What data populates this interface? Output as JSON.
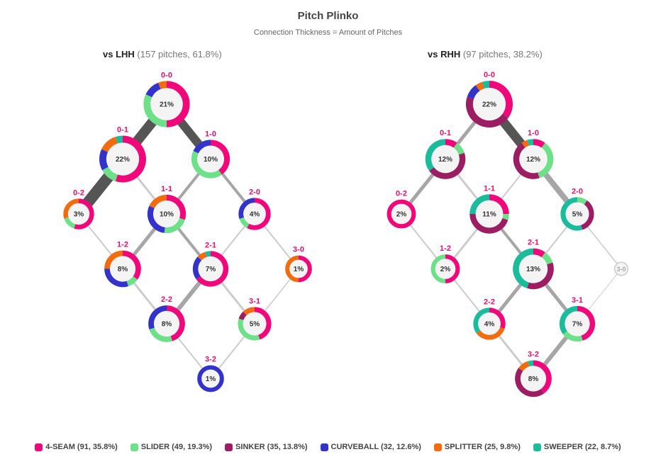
{
  "title": "Pitch Plinko",
  "subtitle": "Connection Thickness = Amount of Pitches",
  "chart_data": {
    "type": "plinko",
    "pitch_types": [
      {
        "key": "4seam",
        "label": "4-SEAM (91, 35.8%)",
        "color": "#f0087a"
      },
      {
        "key": "slider",
        "label": "SLIDER (49, 19.3%)",
        "color": "#6ee08a"
      },
      {
        "key": "sinker",
        "label": "SINKER (35, 13.8%)",
        "color": "#9b1d62"
      },
      {
        "key": "curveball",
        "label": "CURVEBALL (32, 12.6%)",
        "color": "#3333cc"
      },
      {
        "key": "splitter",
        "label": "SPLITTER (25, 9.8%)",
        "color": "#f26b0f"
      },
      {
        "key": "sweeper",
        "label": "SWEEPER (22, 8.7%)",
        "color": "#1bbc9b"
      }
    ],
    "panels": [
      {
        "side_label": "vs LHH",
        "side_detail": "(157 pitches, 61.8%)",
        "nodes": [
          {
            "count": "0-0",
            "pct": 21,
            "pct_label": "21%",
            "mix": {
              "4seam": 0.5,
              "slider": 0.32,
              "curveball": 0.12,
              "splitter": 0.06
            }
          },
          {
            "count": "0-1",
            "pct": 22,
            "pct_label": "22%",
            "mix": {
              "4seam": 0.55,
              "curveball": 0.15,
              "slider": 0.12,
              "splitter": 0.13,
              "sweeper": 0.05
            }
          },
          {
            "count": "1-0",
            "pct": 10,
            "pct_label": "10%",
            "mix": {
              "slider": 0.42,
              "4seam": 0.4,
              "curveball": 0.18
            }
          },
          {
            "count": "0-2",
            "pct": 3,
            "pct_label": "3%",
            "mix": {
              "4seam": 0.55,
              "splitter": 0.3,
              "slider": 0.15
            }
          },
          {
            "count": "1-1",
            "pct": 10,
            "pct_label": "10%",
            "mix": {
              "4seam": 0.3,
              "curveball": 0.3,
              "slider": 0.22,
              "splitter": 0.18
            }
          },
          {
            "count": "2-0",
            "pct": 4,
            "pct_label": "4%",
            "mix": {
              "4seam": 0.58,
              "curveball": 0.3,
              "slider": 0.12
            }
          },
          {
            "count": "1-2",
            "pct": 8,
            "pct_label": "8%",
            "mix": {
              "4seam": 0.35,
              "curveball": 0.3,
              "splitter": 0.25,
              "slider": 0.1
            }
          },
          {
            "count": "2-1",
            "pct": 7,
            "pct_label": "7%",
            "mix": {
              "4seam": 0.65,
              "curveball": 0.22,
              "splitter": 0.08,
              "sweeper": 0.05
            }
          },
          {
            "count": "3-0",
            "pct": 1,
            "pct_label": "1%",
            "mix": {
              "4seam": 0.5,
              "splitter": 0.5
            }
          },
          {
            "count": "2-2",
            "pct": 8,
            "pct_label": "8%",
            "mix": {
              "4seam": 0.45,
              "curveball": 0.3,
              "slider": 0.25
            }
          },
          {
            "count": "3-1",
            "pct": 5,
            "pct_label": "5%",
            "mix": {
              "4seam": 0.45,
              "slider": 0.35,
              "splitter": 0.12,
              "sinker": 0.08
            }
          },
          {
            "count": "3-2",
            "pct": 1,
            "pct_label": "1%",
            "mix": {
              "curveball": 1.0
            }
          }
        ],
        "links": [
          {
            "from": "0-0",
            "to": "0-1",
            "weight": 14
          },
          {
            "from": "0-0",
            "to": "1-0",
            "weight": 12
          },
          {
            "from": "0-1",
            "to": "0-2",
            "weight": 16
          },
          {
            "from": "0-1",
            "to": "1-1",
            "weight": 3
          },
          {
            "from": "1-0",
            "to": "1-1",
            "weight": 4
          },
          {
            "from": "1-0",
            "to": "2-0",
            "weight": 4
          },
          {
            "from": "0-2",
            "to": "1-2",
            "weight": 2
          },
          {
            "from": "1-1",
            "to": "1-2",
            "weight": 5
          },
          {
            "from": "1-1",
            "to": "2-1",
            "weight": 4
          },
          {
            "from": "2-0",
            "to": "2-1",
            "weight": 2
          },
          {
            "from": "2-0",
            "to": "3-0",
            "weight": 2
          },
          {
            "from": "1-2",
            "to": "2-2",
            "weight": 3
          },
          {
            "from": "2-1",
            "to": "2-2",
            "weight": 6
          },
          {
            "from": "2-1",
            "to": "3-1",
            "weight": 3
          },
          {
            "from": "3-0",
            "to": "3-1",
            "weight": 1.5
          },
          {
            "from": "2-2",
            "to": "3-2",
            "weight": 2
          },
          {
            "from": "3-1",
            "to": "3-2",
            "weight": 2
          }
        ]
      },
      {
        "side_label": "vs RHH",
        "side_detail": "(97 pitches, 38.2%)",
        "nodes": [
          {
            "count": "0-0",
            "pct": 22,
            "pct_label": "22%",
            "mix": {
              "sinker": 0.45,
              "4seam": 0.35,
              "curveball": 0.1,
              "sweeper": 0.05,
              "splitter": 0.05
            }
          },
          {
            "count": "0-1",
            "pct": 12,
            "pct_label": "12%",
            "mix": {
              "sweeper": 0.35,
              "sinker": 0.45,
              "4seam": 0.1,
              "slider": 0.1
            }
          },
          {
            "count": "1-0",
            "pct": 12,
            "pct_label": "12%",
            "mix": {
              "sinker": 0.45,
              "slider": 0.35,
              "4seam": 0.1,
              "splitter": 0.05,
              "sweeper": 0.05
            }
          },
          {
            "count": "0-2",
            "pct": 2,
            "pct_label": "2%",
            "mix": {
              "4seam": 1.0
            }
          },
          {
            "count": "1-1",
            "pct": 11,
            "pct_label": "11%",
            "mix": {
              "sinker": 0.45,
              "4seam": 0.25,
              "sweeper": 0.25,
              "slider": 0.05
            }
          },
          {
            "count": "2-0",
            "pct": 5,
            "pct_label": "5%",
            "mix": {
              "sweeper": 0.55,
              "sinker": 0.35,
              "slider": 0.1
            }
          },
          {
            "count": "1-2",
            "pct": 2,
            "pct_label": "2%",
            "mix": {
              "4seam": 0.5,
              "slider": 0.5
            }
          },
          {
            "count": "2-1",
            "pct": 13,
            "pct_label": "13%",
            "mix": {
              "sinker": 0.35,
              "sweeper": 0.45,
              "slider": 0.1,
              "4seam": 0.1
            }
          },
          {
            "count": "3-0",
            "pct": 0,
            "pct_label": "3-0",
            "mix": {}
          },
          {
            "count": "2-2",
            "pct": 4,
            "pct_label": "4%",
            "mix": {
              "splitter": 0.35,
              "4seam": 0.3,
              "sweeper": 0.35
            }
          },
          {
            "count": "3-1",
            "pct": 7,
            "pct_label": "7%",
            "mix": {
              "4seam": 0.45,
              "sweeper": 0.35,
              "slider": 0.2
            }
          },
          {
            "count": "3-2",
            "pct": 8,
            "pct_label": "8%",
            "mix": {
              "4seam": 0.4,
              "sinker": 0.45,
              "splitter": 0.1,
              "sweeper": 0.05
            }
          }
        ],
        "links": [
          {
            "from": "0-0",
            "to": "0-1",
            "weight": 5
          },
          {
            "from": "0-0",
            "to": "1-0",
            "weight": 13
          },
          {
            "from": "0-1",
            "to": "0-2",
            "weight": 5
          },
          {
            "from": "0-1",
            "to": "1-1",
            "weight": 3
          },
          {
            "from": "1-0",
            "to": "1-1",
            "weight": 2
          },
          {
            "from": "1-0",
            "to": "2-0",
            "weight": 8
          },
          {
            "from": "0-2",
            "to": "1-2",
            "weight": 2
          },
          {
            "from": "1-1",
            "to": "1-2",
            "weight": 3
          },
          {
            "from": "1-1",
            "to": "2-1",
            "weight": 4
          },
          {
            "from": "2-0",
            "to": "2-1",
            "weight": 2
          },
          {
            "from": "2-0",
            "to": "3-0",
            "weight": 1.5
          },
          {
            "from": "1-2",
            "to": "2-2",
            "weight": 2
          },
          {
            "from": "2-1",
            "to": "2-2",
            "weight": 5
          },
          {
            "from": "2-1",
            "to": "3-1",
            "weight": 5
          },
          {
            "from": "3-0",
            "to": "3-1",
            "weight": 0.5
          },
          {
            "from": "2-2",
            "to": "3-2",
            "weight": 3
          },
          {
            "from": "3-1",
            "to": "3-2",
            "weight": 6
          }
        ]
      }
    ]
  }
}
